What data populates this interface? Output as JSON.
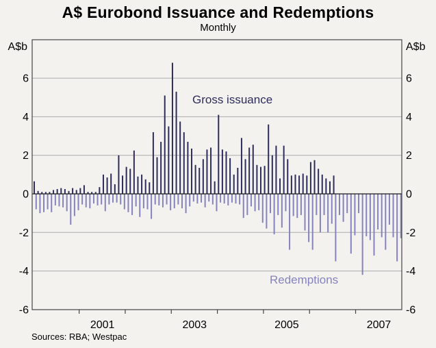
{
  "chart": {
    "title": "A$ Eurobond Issuance and Redemptions",
    "subtitle": "Monthly",
    "unit_left": "A$b",
    "unit_right": "A$b",
    "issuance_label": "Gross issuance",
    "redemptions_label": "Redemptions",
    "sources": "Sources: RBA; Westpac"
  },
  "colors": {
    "issuance_bar": "#2e2c5a",
    "redemption_bar": "#8583bd",
    "gridline": "#ababab",
    "zero_line": "#1a1a1a",
    "frame": "#444444",
    "background": "#f3f2ef"
  },
  "chart_data": {
    "type": "bar",
    "title": "A$ Eurobond Issuance and Redemptions",
    "subtitle": "Monthly",
    "ylabel": "A$b",
    "ylim": [
      -6,
      8
    ],
    "yticks": [
      6,
      4,
      2,
      0,
      -2,
      -4,
      -6
    ],
    "ytick_labels": [
      "6",
      "4",
      "2",
      "0",
      "-2",
      "-4",
      "-6"
    ],
    "xticklabels": [
      "2001",
      "2003",
      "2005",
      "2007"
    ],
    "frequency": "monthly",
    "x_start": "2000-01",
    "x_end": "2007-12",
    "grid": true,
    "legend_position": "inline-annotations",
    "series": [
      {
        "name": "Gross issuance",
        "start": "2000-01",
        "end": "2006-07",
        "values": [
          0.65,
          0.15,
          0.1,
          0.1,
          0.1,
          0.2,
          0.25,
          0.3,
          0.25,
          0.15,
          0.3,
          0.2,
          0.3,
          0.45,
          0.1,
          0.1,
          0.1,
          0.35,
          1.0,
          0.85,
          1.05,
          0.5,
          2.0,
          0.95,
          1.4,
          1.3,
          2.25,
          0.9,
          1.0,
          0.75,
          0.6,
          3.2,
          1.9,
          2.7,
          5.1,
          3.5,
          6.8,
          5.3,
          3.75,
          3.2,
          2.7,
          2.35,
          1.5,
          1.35,
          1.8,
          2.3,
          2.4,
          0.65,
          4.1,
          2.3,
          2.2,
          1.85,
          1.0,
          1.35,
          2.9,
          1.8,
          2.4,
          2.55,
          1.5,
          1.4,
          1.45,
          3.6,
          2.0,
          2.5,
          0.8,
          2.5,
          1.8,
          0.95,
          1.0,
          0.95,
          1.05,
          0.95,
          1.65,
          1.75,
          1.3,
          1.0,
          0.8,
          0.65,
          0.95
        ]
      },
      {
        "name": "Redemptions",
        "start": "2000-01",
        "end": "2007-12",
        "values": [
          -0.8,
          -1.0,
          -0.95,
          -0.8,
          -0.95,
          -0.6,
          -0.65,
          -0.7,
          -0.9,
          -1.6,
          -1.15,
          -0.85,
          -0.55,
          -0.7,
          -0.75,
          -0.5,
          -0.6,
          -0.55,
          -0.9,
          -0.55,
          -0.45,
          -0.45,
          -0.55,
          -0.8,
          -0.95,
          -1.1,
          -0.65,
          -1.2,
          -0.75,
          -0.8,
          -1.3,
          -0.55,
          -0.6,
          -0.7,
          -0.55,
          -0.85,
          -0.75,
          -0.55,
          -0.75,
          -1.0,
          -0.65,
          -0.4,
          -0.5,
          -0.45,
          -0.7,
          -0.4,
          -0.55,
          -0.9,
          -0.45,
          -0.5,
          -0.6,
          -0.45,
          -0.5,
          -0.55,
          -1.25,
          -1.1,
          -0.65,
          -0.9,
          -0.85,
          -1.5,
          -1.8,
          -1.0,
          -2.1,
          -1.1,
          -1.75,
          -0.9,
          -2.9,
          -1.15,
          -1.25,
          -1.1,
          -1.9,
          -2.5,
          -2.9,
          -1.1,
          -2.0,
          -1.1,
          -2.0,
          -1.55,
          -3.5,
          -1.1,
          -1.45,
          -1.0,
          -3.1,
          -2.15,
          -1.0,
          -4.2,
          -2.2,
          -2.4,
          -3.2,
          -1.85,
          -2.25,
          -2.9,
          -1.6,
          -2.25,
          -3.5,
          -2.3
        ]
      }
    ]
  }
}
